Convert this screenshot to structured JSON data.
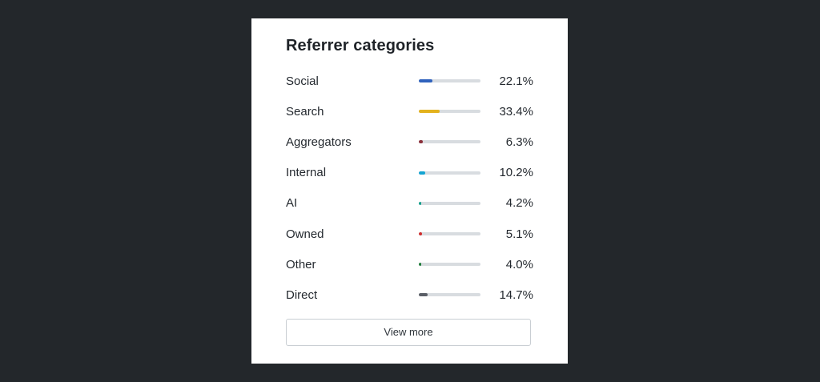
{
  "card": {
    "title": "Referrer categories",
    "view_more_label": "View more"
  },
  "categories": [
    {
      "label": "Social",
      "value": "22.1%",
      "fraction": 0.221,
      "color": "#2f62bd"
    },
    {
      "label": "Search",
      "value": "33.4%",
      "fraction": 0.334,
      "color": "#e3b21d"
    },
    {
      "label": "Aggregators",
      "value": "6.3%",
      "fraction": 0.063,
      "color": "#8b2f3a"
    },
    {
      "label": "Internal",
      "value": "10.2%",
      "fraction": 0.102,
      "color": "#14a4d2"
    },
    {
      "label": "AI",
      "value": "4.2%",
      "fraction": 0.042,
      "color": "#13a08c"
    },
    {
      "label": "Owned",
      "value": "5.1%",
      "fraction": 0.051,
      "color": "#cf2d2d"
    },
    {
      "label": "Other",
      "value": "4.0%",
      "fraction": 0.04,
      "color": "#1e7d3a"
    },
    {
      "label": "Direct",
      "value": "14.7%",
      "fraction": 0.147,
      "color": "#5a5e66"
    }
  ]
}
